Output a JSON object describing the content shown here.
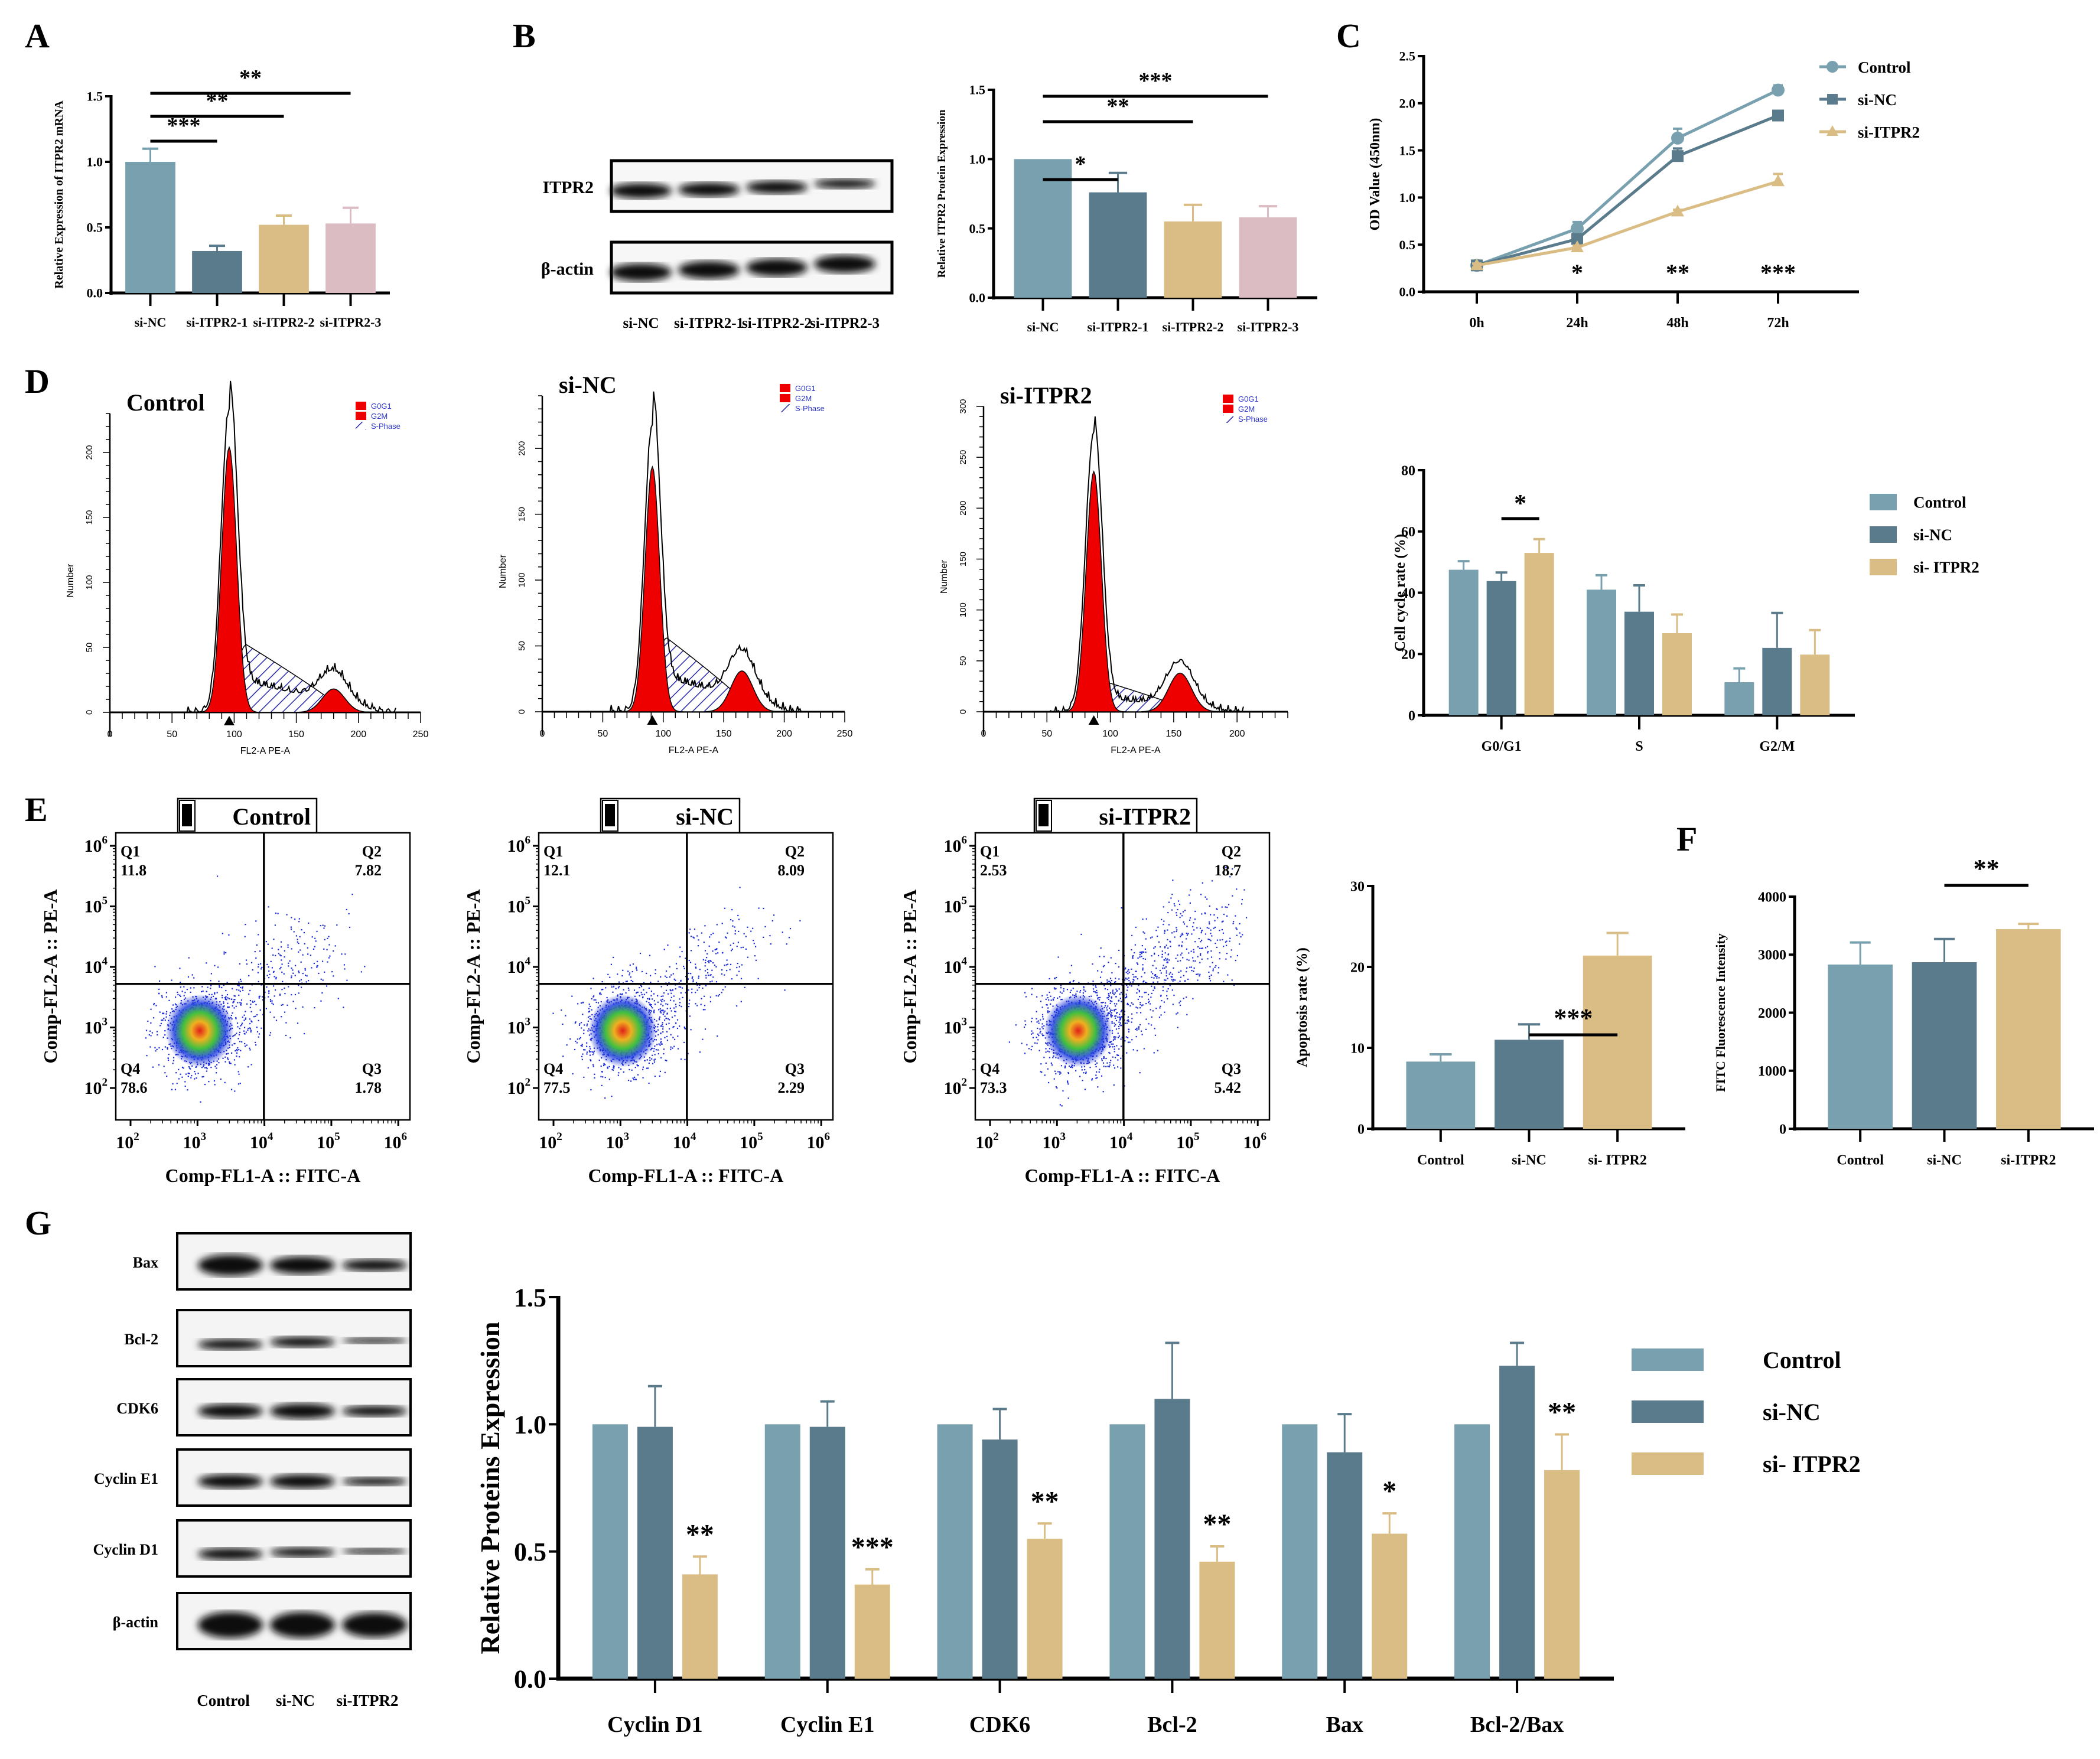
{
  "colors": {
    "control": "#78a0ae",
    "sinc": "#5a7b8b",
    "si_itpr2": "#d9bd84",
    "si_itpr2_3": "#dbbcc3",
    "g0g1_fill": "#ee0000",
    "sphase_hatch": "#2a2aa8",
    "legend_text_blue": "#2b35c8",
    "axis": "#000000"
  },
  "panel_labels": {
    "A": "A",
    "B": "B",
    "C": "C",
    "D": "D",
    "E": "E",
    "F": "F",
    "G": "G"
  },
  "chart_data": [
    {
      "id": "A",
      "type": "bar",
      "title": "",
      "ylabel": "Relative Expression of ITPR2 mRNA",
      "xlabel": "",
      "categories": [
        "si-NC",
        "si-ITPR2-1",
        "si-ITPR2-2",
        "si-ITPR2-3"
      ],
      "values": [
        1.0,
        0.32,
        0.52,
        0.53
      ],
      "error_upper": [
        1.1,
        0.36,
        0.59,
        0.65
      ],
      "bar_colors": [
        "control",
        "sinc",
        "si_itpr2",
        "si_itpr2_3"
      ],
      "ylim": [
        0,
        1.5
      ],
      "yticks": [
        "0.0",
        "0.5",
        "1.0",
        "1.5"
      ],
      "significance": [
        {
          "from": 0,
          "to": 1,
          "label": "***"
        },
        {
          "from": 0,
          "to": 2,
          "label": "**"
        },
        {
          "from": 0,
          "to": 3,
          "label": "**"
        }
      ]
    },
    {
      "id": "B",
      "type": "bar",
      "ylabel": "Relative ITPR2 Protein Expression",
      "xlabel": "",
      "categories": [
        "si-NC",
        "si-ITPR2-1",
        "si-ITPR2-2",
        "si-ITPR2-3"
      ],
      "values": [
        1.0,
        0.76,
        0.55,
        0.58
      ],
      "error_upper": [
        1.0,
        0.9,
        0.67,
        0.66
      ],
      "bar_colors": [
        "control",
        "sinc",
        "si_itpr2",
        "si_itpr2_3"
      ],
      "ylim": [
        0,
        1.5
      ],
      "yticks": [
        "0.0",
        "0.5",
        "1.0",
        "1.5"
      ],
      "significance": [
        {
          "from": 0,
          "to": 1,
          "label": "*"
        },
        {
          "from": 0,
          "to": 2,
          "label": "**"
        },
        {
          "from": 0,
          "to": 3,
          "label": "***"
        }
      ],
      "blot": {
        "rows": [
          "ITPR2",
          "β-actin"
        ],
        "lanes": [
          "si-NC",
          "si-ITPR2-1",
          "si-ITPR2-2",
          "si-ITPR2-3"
        ]
      }
    },
    {
      "id": "C",
      "type": "line",
      "ylabel": "OD Value (450nm)",
      "xlabel": "",
      "x": [
        "0h",
        "24h",
        "48h",
        "72h"
      ],
      "series": [
        {
          "name": "Control",
          "marker": "circle",
          "color": "control",
          "values": [
            0.28,
            0.67,
            1.63,
            2.14
          ],
          "error_upper": [
            0.3,
            0.74,
            1.73,
            2.19
          ]
        },
        {
          "name": "si-NC",
          "marker": "square",
          "color": "sinc",
          "values": [
            0.28,
            0.56,
            1.44,
            1.87
          ],
          "error_upper": [
            0.3,
            0.58,
            1.52,
            1.92
          ]
        },
        {
          "name": "si-ITPR2",
          "marker": "triangle",
          "color": "si_itpr2",
          "values": [
            0.28,
            0.47,
            0.85,
            1.17
          ],
          "error_upper": [
            0.3,
            0.49,
            0.87,
            1.25
          ]
        }
      ],
      "ylim": [
        0,
        2.5
      ],
      "yticks": [
        "0.0",
        "0.5",
        "1.0",
        "1.5",
        "2.0",
        "2.5"
      ],
      "annotations": [
        {
          "x": "24h",
          "label": "*"
        },
        {
          "x": "48h",
          "label": "**"
        },
        {
          "x": "72h",
          "label": "***"
        }
      ],
      "legend": "top-right"
    },
    {
      "id": "D-hist",
      "type": "area",
      "panels": [
        {
          "title": "Control",
          "ylim": [
            0,
            230
          ],
          "yticks": [
            "0",
            "50",
            "100",
            "150",
            "200"
          ],
          "xticks": [
            "0",
            "50",
            "100",
            "150",
            "200",
            "250"
          ],
          "xlim": [
            0,
            250
          ],
          "g0g1_peak": {
            "x": 96,
            "y": 204
          },
          "g2m_peak": {
            "x": 180,
            "y": 18
          },
          "s_peak": {
            "x": 110,
            "y": 52
          },
          "raw_peak": 232
        },
        {
          "title": "si-NC",
          "ylim": [
            0,
            240
          ],
          "yticks": [
            "0",
            "50",
            "100",
            "150",
            "200"
          ],
          "xticks": [
            "0",
            "50",
            "100",
            "150",
            "200",
            "250"
          ],
          "xlim": [
            0,
            250
          ],
          "g0g1_peak": {
            "x": 91,
            "y": 186
          },
          "g2m_peak": {
            "x": 165,
            "y": 31
          },
          "s_peak": {
            "x": 103,
            "y": 56
          },
          "raw_peak": 218
        },
        {
          "title": "si-ITPR2",
          "ylim": [
            0,
            300
          ],
          "yticks": [
            "0",
            "50",
            "100",
            "150",
            "200",
            "250",
            "300"
          ],
          "xticks": [
            "0",
            "50",
            "100",
            "150",
            "200"
          ],
          "xlim": [
            0,
            240
          ],
          "g0g1_peak": {
            "x": 87,
            "y": 236
          },
          "g2m_peak": {
            "x": 155,
            "y": 38
          },
          "s_peak": {
            "x": 100,
            "y": 28
          },
          "raw_peak": 275
        }
      ],
      "xlabel": "FL2-A PE-A",
      "ylabel": "Number",
      "legend": [
        "G0G1",
        "G2M",
        "S-Phase"
      ]
    },
    {
      "id": "D-bar",
      "type": "bar",
      "ylabel": "Cell cycle rate (%)",
      "categories": [
        "G0/G1",
        "S",
        "G2/M"
      ],
      "series": [
        {
          "name": "Control",
          "color": "control",
          "values": [
            47.5,
            41.0,
            10.8
          ],
          "error_upper": [
            50.3,
            45.7,
            15.3
          ]
        },
        {
          "name": "si-NC",
          "color": "sinc",
          "values": [
            43.8,
            33.8,
            22.0
          ],
          "error_upper": [
            46.6,
            42.4,
            33.4
          ]
        },
        {
          "name": "si- ITPR2",
          "color": "si_itpr2",
          "values": [
            53.0,
            26.8,
            19.8
          ],
          "error_upper": [
            57.5,
            32.9,
            27.8
          ]
        }
      ],
      "ylim": [
        0,
        80
      ],
      "yticks": [
        "0",
        "20",
        "40",
        "60",
        "80"
      ],
      "significance": [
        {
          "category": 0,
          "from": 1,
          "to": 2,
          "label": "*"
        }
      ],
      "legend": "right"
    },
    {
      "id": "E-flow",
      "type": "scatter",
      "xlabel": "Comp-FL1-A :: FITC-A",
      "ylabel": "Comp-FL2-A :: PE-A",
      "xticks": [
        "10^2",
        "10^3",
        "10^4",
        "10^5",
        "10^6"
      ],
      "yticks": [
        "10^2",
        "10^3",
        "10^4",
        "10^5",
        "10^6"
      ],
      "panels": [
        {
          "title": "Control",
          "Q1": "11.8",
          "Q2": "7.82",
          "Q3": "1.78",
          "Q4": "78.6"
        },
        {
          "title": "si-NC",
          "Q1": "12.1",
          "Q2": "8.09",
          "Q3": "2.29",
          "Q4": "77.5"
        },
        {
          "title": "si-ITPR2",
          "Q1": "2.53",
          "Q2": "18.7",
          "Q3": "5.42",
          "Q4": "73.3"
        }
      ]
    },
    {
      "id": "E-bar",
      "type": "bar",
      "ylabel": "Apoptosis rate (%)",
      "categories": [
        "Control",
        "si-NC",
        "si- ITPR2"
      ],
      "values": [
        8.3,
        11.0,
        21.4
      ],
      "error_upper": [
        9.2,
        12.9,
        24.2
      ],
      "bar_colors": [
        "control",
        "sinc",
        "si_itpr2"
      ],
      "ylim": [
        0,
        30
      ],
      "yticks": [
        "0",
        "10",
        "20",
        "30"
      ],
      "significance": [
        {
          "from": 1,
          "to": 2,
          "label": "***"
        }
      ]
    },
    {
      "id": "F",
      "type": "bar",
      "ylabel": "FITC Fluorescence Intensity",
      "categories": [
        "Control",
        "si-NC",
        "si-ITPR2"
      ],
      "values": [
        2830,
        2870,
        3440
      ],
      "error_upper": [
        3210,
        3270,
        3530
      ],
      "bar_colors": [
        "control",
        "sinc",
        "si_itpr2"
      ],
      "ylim": [
        0,
        4000
      ],
      "yticks": [
        "0",
        "1000",
        "2000",
        "3000",
        "4000"
      ],
      "significance": [
        {
          "from": 1,
          "to": 2,
          "label": "**"
        }
      ]
    },
    {
      "id": "G",
      "type": "bar",
      "ylabel": "Relative Proteins Expression",
      "categories": [
        "Cyclin D1",
        "Cyclin E1",
        "CDK6",
        "Bcl-2",
        "Bax",
        "Bcl-2/Bax"
      ],
      "series": [
        {
          "name": "Control",
          "color": "control",
          "values": [
            1.0,
            1.0,
            1.0,
            1.0,
            1.0,
            1.0
          ],
          "error_upper": [
            1.0,
            1.0,
            1.0,
            1.0,
            1.0,
            1.0
          ]
        },
        {
          "name": "si-NC",
          "color": "sinc",
          "values": [
            0.99,
            0.99,
            0.94,
            1.1,
            0.89,
            1.23
          ],
          "error_upper": [
            1.15,
            1.09,
            1.06,
            1.32,
            1.04,
            1.32
          ]
        },
        {
          "name": "si- ITPR2",
          "color": "si_itpr2",
          "values": [
            0.41,
            0.37,
            0.55,
            0.46,
            0.57,
            0.82
          ],
          "error_upper": [
            0.48,
            0.43,
            0.61,
            0.52,
            0.65,
            0.96
          ]
        }
      ],
      "annotations": [
        "**",
        "***",
        "**",
        "**",
        "*",
        "**"
      ],
      "ylim": [
        0,
        1.5
      ],
      "yticks": [
        "0.0",
        "0.5",
        "1.0",
        "1.5"
      ],
      "legend": "right",
      "blot": {
        "rows": [
          "Bax",
          "Bcl-2",
          "CDK6",
          "Cyclin E1",
          "Cyclin D1",
          "β-actin"
        ],
        "lanes": [
          "Control",
          "si-NC",
          "si-ITPR2"
        ]
      }
    }
  ]
}
